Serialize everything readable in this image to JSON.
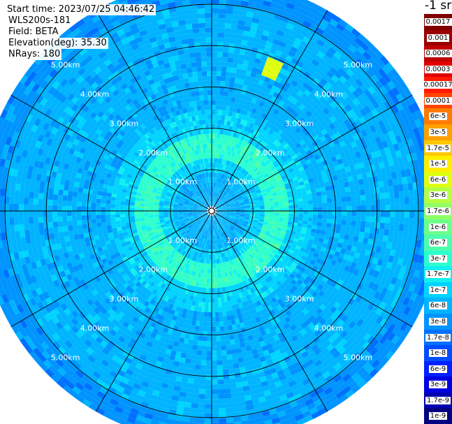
{
  "header": {
    "start_time": "Start time: 2023/07/25 04:46:42",
    "instrument": "WLS200s-181",
    "field": "Field: BETA",
    "elevation": "Elevation(deg): 35.30",
    "nrays": "NRays: 180"
  },
  "colorbar": {
    "unit": "-1 sr",
    "levels": [
      {
        "label": "0.0017",
        "color": "#7f0000"
      },
      {
        "label": "0.001",
        "color": "#9a0000"
      },
      {
        "label": "0.0006",
        "color": "#bf0000"
      },
      {
        "label": "0.0003",
        "color": "#e00000"
      },
      {
        "label": "0.00017",
        "color": "#ff1a00"
      },
      {
        "label": "0.0001",
        "color": "#ff4500"
      },
      {
        "label": "6e-5",
        "color": "#ff7a00"
      },
      {
        "label": "3e-5",
        "color": "#ffa000"
      },
      {
        "label": "1.7e-5",
        "color": "#ffc800"
      },
      {
        "label": "1e-5",
        "color": "#ffee00"
      },
      {
        "label": "6e-6",
        "color": "#e0ff10"
      },
      {
        "label": "3e-6",
        "color": "#b4ff42"
      },
      {
        "label": "1.7e-6",
        "color": "#90ff66"
      },
      {
        "label": "1e-6",
        "color": "#6cff8a"
      },
      {
        "label": "6e-7",
        "color": "#4cffac"
      },
      {
        "label": "3e-7",
        "color": "#2cffce"
      },
      {
        "label": "1.7e-7",
        "color": "#12f0f0"
      },
      {
        "label": "1e-7",
        "color": "#00d4ff"
      },
      {
        "label": "6e-8",
        "color": "#00b4ff"
      },
      {
        "label": "3e-8",
        "color": "#0094ff"
      },
      {
        "label": "1.7e-8",
        "color": "#0070ff"
      },
      {
        "label": "1e-8",
        "color": "#004cff"
      },
      {
        "label": "6e-9",
        "color": "#0020ff"
      },
      {
        "label": "3e-9",
        "color": "#0000e0"
      },
      {
        "label": "1.7e-9",
        "color": "#0000b0"
      },
      {
        "label": "1e-9",
        "color": "#000080"
      }
    ]
  },
  "chart_data": {
    "type": "heatmap",
    "projection": "polar PPI",
    "field": "BETA",
    "rays": 180,
    "range_rings_km": [
      1,
      2,
      3,
      4,
      5
    ],
    "ring_labels": [
      "1.00km",
      "2.00km",
      "3.00km",
      "4.00km",
      "5.00km"
    ],
    "max_range_km": 5.6,
    "azimuth_lines_deg": [
      0,
      30,
      60,
      90,
      120,
      150,
      180,
      210,
      240,
      270,
      300,
      330
    ],
    "radial_profile": [
      {
        "range_km": 0.0,
        "beta": "6e-8"
      },
      {
        "range_km": 0.6,
        "beta": "6e-8"
      },
      {
        "range_km": 0.9,
        "beta": "1e-7"
      },
      {
        "range_km": 1.3,
        "beta": "3e-7"
      },
      {
        "range_km": 1.9,
        "beta": "1e-7"
      },
      {
        "range_km": 2.5,
        "beta": "6e-8"
      },
      {
        "range_km": 3.5,
        "beta": "6e-8"
      },
      {
        "range_km": 5.0,
        "beta": "3e-8"
      }
    ],
    "feature": {
      "azimuth_deg": 22,
      "range_km_from": 3.5,
      "range_km_to": 3.95,
      "beta": "6e-6"
    }
  }
}
